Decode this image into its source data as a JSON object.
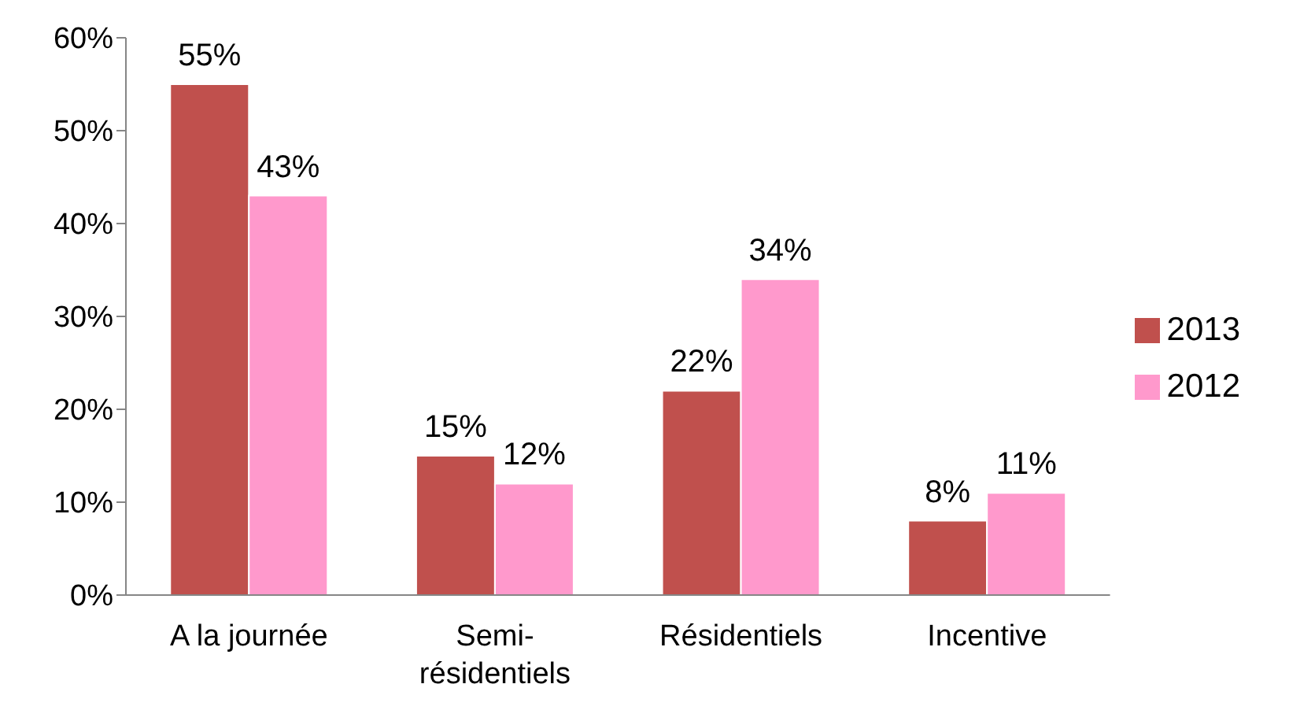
{
  "chart_data": {
    "type": "bar",
    "categories": [
      "A la journée",
      "Semi-résidentiels",
      "Résidentiels",
      "Incentive"
    ],
    "series": [
      {
        "name": "2013",
        "color": "#c0504d",
        "values": [
          55,
          15,
          22,
          8
        ],
        "value_labels": [
          "55%",
          "15%",
          "22%",
          "8%"
        ]
      },
      {
        "name": "2012",
        "color": "#ff99cc",
        "values": [
          43,
          12,
          34,
          11
        ],
        "value_labels": [
          "43%",
          "12%",
          "34%",
          "11%"
        ]
      }
    ],
    "ylim": [
      0,
      60
    ],
    "yticks": [
      {
        "value": 0,
        "label": "0%"
      },
      {
        "value": 10,
        "label": "10%"
      },
      {
        "value": 20,
        "label": "20%"
      },
      {
        "value": 30,
        "label": "30%"
      },
      {
        "value": 40,
        "label": "40%"
      },
      {
        "value": 50,
        "label": "50%"
      },
      {
        "value": 60,
        "label": "60%"
      }
    ],
    "grid": false,
    "legend": "right"
  }
}
